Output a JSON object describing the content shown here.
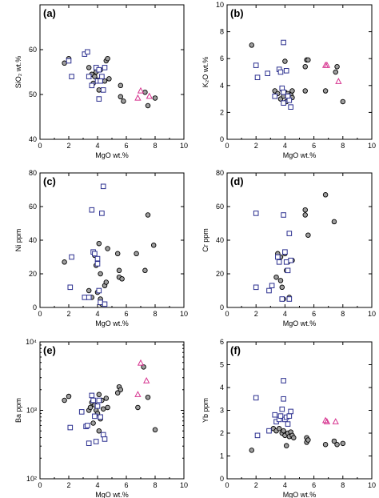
{
  "colors": {
    "circle_fill": "#9e9e9e",
    "circle_stroke": "#000000",
    "square_stroke": "#2b2f8f",
    "triangle_stroke": "#d6338f"
  },
  "chart_data": [
    {
      "type": "scatter",
      "panel_label": "(a)",
      "xlabel": "MgO wt.%",
      "ylabel": "SiO₂ wt.%",
      "xlim": [
        0,
        10
      ],
      "ylim": [
        40,
        70
      ],
      "yscale": "linear",
      "xticks": [
        0,
        2,
        4,
        6,
        8,
        10
      ],
      "yticks": [
        40,
        50,
        60
      ],
      "series": [
        {
          "marker": "circle",
          "points": [
            [
              1.7,
              57
            ],
            [
              2.0,
              58
            ],
            [
              3.4,
              56
            ],
            [
              3.6,
              54.5
            ],
            [
              3.7,
              52.5
            ],
            [
              3.8,
              54
            ],
            [
              3.9,
              55
            ],
            [
              4.0,
              53.2
            ],
            [
              4.1,
              51
            ],
            [
              4.2,
              55.5
            ],
            [
              4.5,
              53
            ],
            [
              4.6,
              57.5
            ],
            [
              4.7,
              58
            ],
            [
              4.8,
              53.5
            ],
            [
              5.6,
              52
            ],
            [
              5.6,
              49.5
            ],
            [
              5.8,
              48.5
            ],
            [
              7.3,
              50.5
            ],
            [
              7.5,
              47.5
            ],
            [
              8.0,
              49.2
            ]
          ]
        },
        {
          "marker": "square",
          "points": [
            [
              2.0,
              57.5
            ],
            [
              2.2,
              54
            ],
            [
              3.1,
              59
            ],
            [
              3.3,
              59.5
            ],
            [
              3.4,
              54
            ],
            [
              3.6,
              52
            ],
            [
              3.9,
              56
            ],
            [
              4.0,
              53
            ],
            [
              4.1,
              55.5
            ],
            [
              4.2,
              53
            ],
            [
              4.1,
              49
            ],
            [
              4.3,
              54
            ],
            [
              4.4,
              51
            ],
            [
              4.5,
              56
            ]
          ]
        },
        {
          "marker": "triangle",
          "points": [
            [
              6.8,
              49.2
            ],
            [
              7.0,
              50.8
            ],
            [
              7.6,
              49.6
            ]
          ]
        }
      ]
    },
    {
      "type": "scatter",
      "panel_label": "(b)",
      "xlabel": "MgO wt.%",
      "ylabel": "K₂O wt.%",
      "xlim": [
        0,
        10
      ],
      "ylim": [
        0,
        10
      ],
      "yscale": "linear",
      "xticks": [
        0,
        2,
        4,
        6,
        8,
        10
      ],
      "yticks": [
        0,
        2,
        4,
        6,
        8,
        10
      ],
      "series": [
        {
          "marker": "circle",
          "points": [
            [
              1.7,
              7.0
            ],
            [
              3.3,
              3.6
            ],
            [
              3.5,
              3.4
            ],
            [
              3.7,
              3.0
            ],
            [
              3.8,
              3.7
            ],
            [
              3.9,
              3.2
            ],
            [
              4.0,
              5.8
            ],
            [
              4.0,
              3.5
            ],
            [
              4.1,
              2.8
            ],
            [
              4.2,
              3.4
            ],
            [
              4.3,
              3.0
            ],
            [
              4.4,
              3.3
            ],
            [
              4.5,
              3.6
            ],
            [
              4.5,
              3.1
            ],
            [
              5.4,
              5.4
            ],
            [
              5.4,
              3.6
            ],
            [
              5.5,
              5.9
            ],
            [
              5.6,
              5.9
            ],
            [
              6.8,
              3.6
            ],
            [
              7.5,
              5.0
            ],
            [
              7.6,
              5.4
            ],
            [
              8.0,
              2.8
            ]
          ]
        },
        {
          "marker": "square",
          "points": [
            [
              2.0,
              5.5
            ],
            [
              2.1,
              4.6
            ],
            [
              2.8,
              4.9
            ],
            [
              3.3,
              3.2
            ],
            [
              3.6,
              5.2
            ],
            [
              3.7,
              5.0
            ],
            [
              3.8,
              3.8
            ],
            [
              3.9,
              7.2
            ],
            [
              3.9,
              3.5
            ],
            [
              3.9,
              2.7
            ],
            [
              4.1,
              5.1
            ],
            [
              4.2,
              3.2
            ],
            [
              4.3,
              2.9
            ],
            [
              4.4,
              2.4
            ]
          ]
        },
        {
          "marker": "triangle",
          "points": [
            [
              6.8,
              5.5
            ],
            [
              6.9,
              5.5
            ],
            [
              7.7,
              4.3
            ]
          ]
        }
      ]
    },
    {
      "type": "scatter",
      "panel_label": "(c)",
      "xlabel": "MgO wt.%",
      "ylabel": "Ni ppm",
      "xlim": [
        0,
        10
      ],
      "ylim": [
        0,
        80
      ],
      "yscale": "linear",
      "xticks": [
        0,
        2,
        4,
        6,
        8,
        10
      ],
      "yticks": [
        0,
        20,
        40,
        60,
        80
      ],
      "series": [
        {
          "marker": "circle",
          "points": [
            [
              1.7,
              27
            ],
            [
              3.4,
              10
            ],
            [
              3.6,
              6
            ],
            [
              3.8,
              31
            ],
            [
              3.9,
              25
            ],
            [
              4.0,
              9
            ],
            [
              4.1,
              38
            ],
            [
              4.2,
              20
            ],
            [
              4.2,
              5
            ],
            [
              4.3,
              2
            ],
            [
              4.5,
              13
            ],
            [
              4.6,
              15
            ],
            [
              4.7,
              35
            ],
            [
              5.4,
              32
            ],
            [
              5.5,
              22
            ],
            [
              5.5,
              18
            ],
            [
              5.7,
              17
            ],
            [
              6.7,
              32
            ],
            [
              7.3,
              22
            ],
            [
              7.5,
              55
            ],
            [
              7.9,
              37
            ]
          ]
        },
        {
          "marker": "square",
          "points": [
            [
              2.1,
              12
            ],
            [
              2.2,
              30
            ],
            [
              3.1,
              6
            ],
            [
              3.4,
              6
            ],
            [
              3.6,
              58
            ],
            [
              3.7,
              33
            ],
            [
              3.8,
              32
            ],
            [
              4.0,
              29
            ],
            [
              4.0,
              26
            ],
            [
              4.1,
              10
            ],
            [
              4.2,
              3
            ],
            [
              4.3,
              56
            ],
            [
              4.4,
              72
            ],
            [
              4.5,
              2
            ]
          ]
        },
        {
          "marker": "triangle",
          "points": []
        }
      ]
    },
    {
      "type": "scatter",
      "panel_label": "(d)",
      "xlabel": "MgO wt.%",
      "ylabel": "Cr ppm",
      "xlim": [
        0,
        10
      ],
      "ylim": [
        0,
        80
      ],
      "yscale": "linear",
      "xticks": [
        0,
        2,
        4,
        6,
        8,
        10
      ],
      "yticks": [
        0,
        20,
        40,
        60,
        80
      ],
      "series": [
        {
          "marker": "circle",
          "points": [
            [
              3.4,
              18
            ],
            [
              3.5,
              32
            ],
            [
              3.7,
              30
            ],
            [
              3.7,
              16
            ],
            [
              3.8,
              12
            ],
            [
              3.9,
              5
            ],
            [
              4.0,
              32
            ],
            [
              4.1,
              22
            ],
            [
              4.2,
              27
            ],
            [
              4.3,
              6
            ],
            [
              4.5,
              28
            ],
            [
              5.4,
              55
            ],
            [
              5.4,
              58
            ],
            [
              5.6,
              43
            ],
            [
              6.8,
              67
            ],
            [
              7.4,
              51
            ]
          ]
        },
        {
          "marker": "square",
          "points": [
            [
              2.0,
              12
            ],
            [
              2.0,
              56
            ],
            [
              2.9,
              10
            ],
            [
              3.1,
              13
            ],
            [
              3.5,
              30
            ],
            [
              3.6,
              27
            ],
            [
              3.8,
              5
            ],
            [
              3.9,
              55
            ],
            [
              4.0,
              33
            ],
            [
              4.1,
              27
            ],
            [
              4.2,
              22
            ],
            [
              4.3,
              44
            ],
            [
              4.3,
              5
            ],
            [
              4.4,
              28
            ]
          ]
        },
        {
          "marker": "triangle",
          "points": []
        }
      ]
    },
    {
      "type": "scatter",
      "panel_label": "(e)",
      "xlabel": "MgO wt.%",
      "ylabel": "Ba ppm",
      "xlim": [
        0,
        10
      ],
      "ylim": [
        100,
        10000
      ],
      "yscale": "log",
      "xticks": [
        0,
        2,
        4,
        6,
        8,
        10
      ],
      "yticks": [
        100,
        1000,
        10000
      ],
      "ytick_labels": [
        "10²",
        "10³",
        "10⁴"
      ],
      "series": [
        {
          "marker": "circle",
          "points": [
            [
              1.7,
              1400
            ],
            [
              2.0,
              1600
            ],
            [
              3.4,
              1000
            ],
            [
              3.5,
              1100
            ],
            [
              3.6,
              1300
            ],
            [
              3.7,
              650
            ],
            [
              3.8,
              1200
            ],
            [
              3.9,
              1000
            ],
            [
              4.0,
              900
            ],
            [
              4.1,
              500
            ],
            [
              4.1,
              1700
            ],
            [
              4.2,
              750
            ],
            [
              4.3,
              1400
            ],
            [
              4.4,
              1050
            ],
            [
              4.6,
              1500
            ],
            [
              4.7,
              1100
            ],
            [
              5.4,
              1800
            ],
            [
              5.5,
              2200
            ],
            [
              5.6,
              2000
            ],
            [
              6.8,
              1100
            ],
            [
              7.2,
              4300
            ],
            [
              7.5,
              1550
            ],
            [
              8.0,
              520
            ]
          ]
        },
        {
          "marker": "square",
          "points": [
            [
              2.1,
              560
            ],
            [
              2.9,
              950
            ],
            [
              3.2,
              580
            ],
            [
              3.3,
              600
            ],
            [
              3.4,
              330
            ],
            [
              3.6,
              1650
            ],
            [
              3.7,
              1400
            ],
            [
              3.8,
              820
            ],
            [
              3.9,
              350
            ],
            [
              4.0,
              1150
            ],
            [
              4.1,
              1400
            ],
            [
              4.2,
              800
            ],
            [
              4.4,
              440
            ],
            [
              4.5,
              380
            ]
          ]
        },
        {
          "marker": "triangle",
          "points": [
            [
              6.8,
              1700
            ],
            [
              7.0,
              4900
            ],
            [
              7.4,
              2700
            ]
          ]
        }
      ]
    },
    {
      "type": "scatter",
      "panel_label": "(f)",
      "xlabel": "MgO wt.%",
      "ylabel": "Yb ppm",
      "xlim": [
        0,
        10
      ],
      "ylim": [
        0,
        6
      ],
      "yscale": "linear",
      "xticks": [
        0,
        2,
        4,
        6,
        8,
        10
      ],
      "yticks": [
        0,
        1,
        2,
        3,
        4,
        5,
        6
      ],
      "series": [
        {
          "marker": "circle",
          "points": [
            [
              1.7,
              1.25
            ],
            [
              3.2,
              2.2
            ],
            [
              3.4,
              2.1
            ],
            [
              3.6,
              2.2
            ],
            [
              3.8,
              2.0
            ],
            [
              3.9,
              2.1
            ],
            [
              4.0,
              1.9
            ],
            [
              4.1,
              1.45
            ],
            [
              4.2,
              2.0
            ],
            [
              4.3,
              1.85
            ],
            [
              4.4,
              2.05
            ],
            [
              4.5,
              1.9
            ],
            [
              4.6,
              1.8
            ],
            [
              5.5,
              1.8
            ],
            [
              5.5,
              1.6
            ],
            [
              5.6,
              1.7
            ],
            [
              6.8,
              1.5
            ],
            [
              7.4,
              1.65
            ],
            [
              7.6,
              1.5
            ],
            [
              8.0,
              1.55
            ]
          ]
        },
        {
          "marker": "square",
          "points": [
            [
              2.0,
              3.55
            ],
            [
              2.1,
              1.9
            ],
            [
              2.9,
              2.1
            ],
            [
              3.3,
              2.8
            ],
            [
              3.4,
              2.5
            ],
            [
              3.6,
              2.6
            ],
            [
              3.7,
              2.75
            ],
            [
              3.8,
              3.05
            ],
            [
              3.9,
              4.3
            ],
            [
              3.9,
              3.5
            ],
            [
              4.0,
              2.6
            ],
            [
              4.1,
              2.7
            ],
            [
              4.2,
              2.4
            ],
            [
              4.3,
              2.75
            ],
            [
              4.4,
              2.95
            ]
          ]
        },
        {
          "marker": "triangle",
          "points": [
            [
              6.8,
              2.55
            ],
            [
              6.9,
              2.5
            ],
            [
              7.5,
              2.5
            ]
          ]
        }
      ]
    }
  ]
}
